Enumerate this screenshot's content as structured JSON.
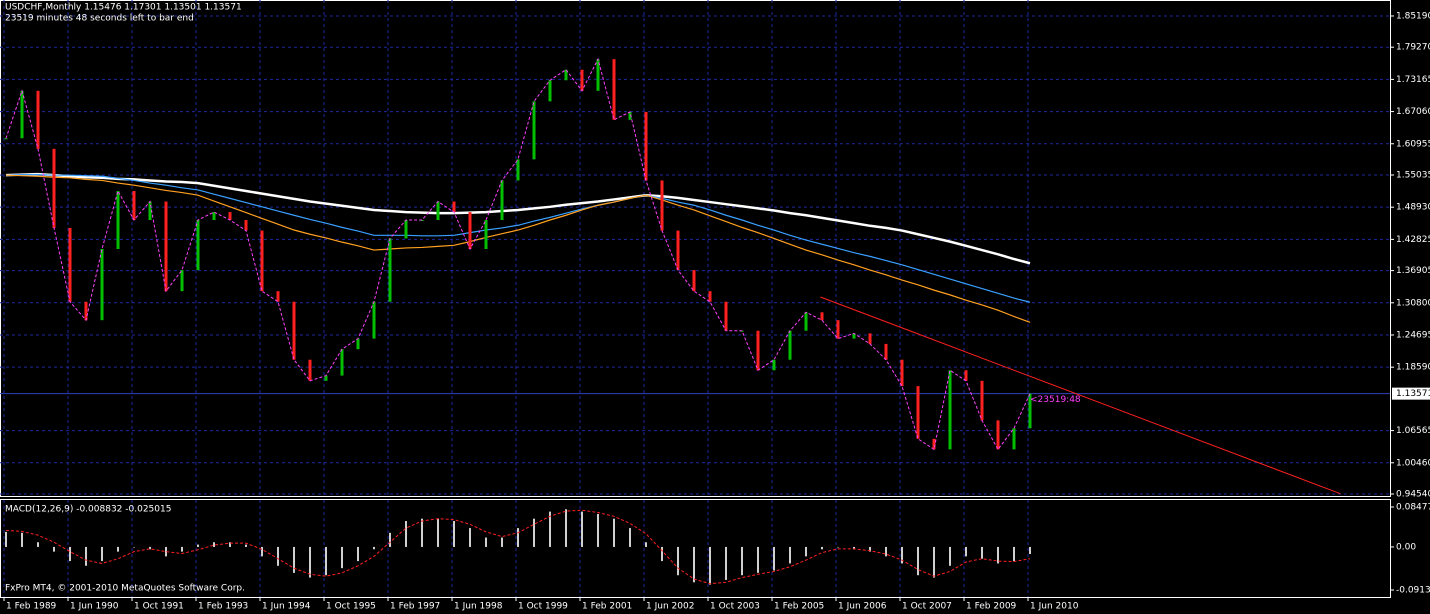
{
  "chart_data": {
    "type": "ohlc-terminal",
    "title": "USDCHF,Monthly  1.15476 1.17301 1.13501 1.13571",
    "subtitle": "23519 minutes 48 seconds left to bar end",
    "footer": "FxPro MT4, © 2001-2010 MetaQuotes Software Corp.",
    "timer_label": "<23519:48",
    "categories": [
      "1 Feb 1989",
      null,
      null,
      null,
      "1 Jun 1990",
      null,
      null,
      null,
      "1 Oct 1991",
      null,
      null,
      null,
      "1 Feb 1993",
      null,
      null,
      null,
      "1 Jun 1994",
      null,
      null,
      null,
      "1 Oct 1995",
      null,
      null,
      null,
      "1 Feb 1997",
      null,
      null,
      null,
      "1 Jun 1998",
      null,
      null,
      null,
      "1 Oct 1999",
      null,
      null,
      null,
      "1 Feb 2001",
      null,
      null,
      null,
      "1 Jun 2002",
      null,
      null,
      null,
      "1 Oct 2003",
      null,
      null,
      null,
      "1 Feb 2005",
      null,
      null,
      null,
      "1 Jun 2006",
      null,
      null,
      null,
      "1 Oct 2007",
      null,
      null,
      null,
      "1 Feb 2009",
      null,
      null,
      null,
      "1 Jun 2010"
    ],
    "up_color": "#00c000",
    "down_color": "#ff2020",
    "close_line_color": "#ff40ff",
    "values": [
      1.62,
      1.71,
      1.6,
      1.45,
      1.31,
      1.275,
      1.41,
      1.52,
      1.465,
      1.5,
      1.33,
      1.37,
      1.465,
      1.48,
      1.465,
      1.445,
      1.33,
      1.31,
      1.2,
      1.16,
      1.17,
      1.22,
      1.24,
      1.31,
      1.43,
      1.465,
      1.465,
      1.5,
      1.48,
      1.41,
      1.465,
      1.54,
      1.58,
      1.69,
      1.73,
      1.75,
      1.71,
      1.77,
      1.655,
      1.67,
      1.54,
      1.445,
      1.37,
      1.33,
      1.31,
      1.255,
      1.255,
      1.18,
      1.2,
      1.255,
      1.29,
      1.275,
      1.24,
      1.25,
      1.23,
      1.2,
      1.15,
      1.05,
      1.03,
      1.18,
      1.16,
      1.085,
      1.03,
      1.07,
      1.13571
    ],
    "series": [
      {
        "name": "MA white",
        "color": "#ffffff",
        "values": [
          1.55,
          1.551,
          1.552,
          1.55,
          1.548,
          1.546,
          1.545,
          1.543,
          1.542,
          1.54,
          1.538,
          1.537,
          1.535,
          1.53,
          1.525,
          1.52,
          1.515,
          1.51,
          1.505,
          1.5,
          1.496,
          1.492,
          1.488,
          1.484,
          1.482,
          1.48,
          1.479,
          1.478,
          1.478,
          1.479,
          1.48,
          1.482,
          1.484,
          1.487,
          1.49,
          1.494,
          1.497,
          1.5,
          1.504,
          1.508,
          1.512,
          1.51,
          1.507,
          1.503,
          1.499,
          1.495,
          1.491,
          1.487,
          1.483,
          1.478,
          1.474,
          1.469,
          1.464,
          1.459,
          1.454,
          1.45,
          1.445,
          1.438,
          1.431,
          1.424,
          1.416,
          1.408,
          1.4,
          1.391,
          1.383
        ]
      },
      {
        "name": "MA blue",
        "color": "#3aa0ff",
        "values": [
          1.55,
          1.551,
          1.551,
          1.55,
          1.55,
          1.549,
          1.548,
          1.544,
          1.54,
          1.535,
          1.531,
          1.526,
          1.522,
          1.514,
          1.506,
          1.498,
          1.49,
          1.482,
          1.474,
          1.466,
          1.459,
          1.451,
          1.444,
          1.436,
          1.436,
          1.436,
          1.435,
          1.435,
          1.436,
          1.441,
          1.446,
          1.45,
          1.455,
          1.463,
          1.47,
          1.478,
          1.486,
          1.493,
          1.499,
          1.506,
          1.512,
          1.506,
          1.499,
          1.493,
          1.484,
          1.474,
          1.465,
          1.455,
          1.446,
          1.436,
          1.427,
          1.419,
          1.411,
          1.403,
          1.396,
          1.388,
          1.38,
          1.371,
          1.362,
          1.353,
          1.344,
          1.335,
          1.326,
          1.317,
          1.309
        ]
      },
      {
        "name": "MA orange",
        "color": "#ffa020",
        "values": [
          1.55,
          1.549,
          1.548,
          1.546,
          1.545,
          1.542,
          1.54,
          1.535,
          1.531,
          1.526,
          1.521,
          1.517,
          1.512,
          1.501,
          1.49,
          1.479,
          1.468,
          1.457,
          1.446,
          1.438,
          1.431,
          1.423,
          1.416,
          1.408,
          1.41,
          1.412,
          1.413,
          1.415,
          1.417,
          1.424,
          1.432,
          1.439,
          1.446,
          1.455,
          1.465,
          1.474,
          1.484,
          1.493,
          1.499,
          1.506,
          1.512,
          1.503,
          1.493,
          1.484,
          1.473,
          1.462,
          1.451,
          1.441,
          1.43,
          1.419,
          1.408,
          1.399,
          1.389,
          1.38,
          1.37,
          1.361,
          1.351,
          1.342,
          1.332,
          1.323,
          1.313,
          1.304,
          1.294,
          1.282,
          1.271
        ]
      }
    ],
    "trendline": {
      "color": "#ff2020",
      "index": [
        50.9,
        83.4
      ],
      "values": [
        1.319,
        0.946
      ]
    },
    "ylim": [
      0.9397,
      1.8822
    ],
    "yticks": [
      {
        "value": 1.8519,
        "label": "1.85190"
      },
      {
        "value": 1.7927,
        "label": "1.79270"
      },
      1.73165,
      {
        "value": 1.6706,
        "label": "1.67060"
      },
      1.60955,
      1.55035,
      {
        "value": 1.4893,
        "label": "1.48930"
      },
      1.42825,
      1.36905,
      {
        "value": 1.308,
        "label": "1.30800"
      },
      1.24695,
      {
        "value": 1.1859,
        "label": "1.18590"
      },
      1.06565,
      {
        "value": 1.0046,
        "label": "1.00460"
      },
      {
        "value": 0.9454,
        "label": "0.94540"
      }
    ],
    "current_price": 1.13571,
    "grid": true,
    "macd": {
      "title": "MACD(12,26,9) -0.008832 -0.025015",
      "histogram_color": "#d0d0d0",
      "signal_color": "#ff2020",
      "values": [
        0.032,
        0.03,
        0.01,
        -0.01,
        -0.03,
        -0.04,
        -0.03,
        -0.01,
        0.0,
        -0.005,
        -0.02,
        -0.01,
        0.005,
        0.01,
        0.01,
        0.005,
        -0.02,
        -0.04,
        -0.055,
        -0.065,
        -0.06,
        -0.045,
        -0.03,
        -0.005,
        0.03,
        0.055,
        0.06,
        0.06,
        0.055,
        0.04,
        0.02,
        0.02,
        0.04,
        0.06,
        0.075,
        0.08,
        0.075,
        0.07,
        0.06,
        0.04,
        0.01,
        -0.03,
        -0.06,
        -0.075,
        -0.08,
        -0.07,
        -0.06,
        -0.055,
        -0.05,
        -0.035,
        -0.02,
        -0.005,
        0.0,
        -0.005,
        -0.01,
        -0.02,
        -0.035,
        -0.06,
        -0.065,
        -0.04,
        -0.02,
        -0.025,
        -0.035,
        -0.03,
        -0.015
      ],
      "signal": [
        0.035,
        0.033,
        0.025,
        0.01,
        -0.01,
        -0.028,
        -0.035,
        -0.025,
        -0.01,
        -0.004,
        -0.01,
        -0.014,
        -0.006,
        0.004,
        0.008,
        0.008,
        -0.005,
        -0.025,
        -0.045,
        -0.058,
        -0.062,
        -0.055,
        -0.04,
        -0.02,
        0.01,
        0.04,
        0.055,
        0.06,
        0.058,
        0.048,
        0.032,
        0.022,
        0.03,
        0.048,
        0.065,
        0.076,
        0.078,
        0.073,
        0.065,
        0.05,
        0.028,
        -0.008,
        -0.045,
        -0.068,
        -0.078,
        -0.075,
        -0.065,
        -0.058,
        -0.052,
        -0.042,
        -0.028,
        -0.012,
        -0.004,
        -0.004,
        -0.008,
        -0.015,
        -0.028,
        -0.048,
        -0.062,
        -0.052,
        -0.032,
        -0.025,
        -0.03,
        -0.031,
        -0.025
      ],
      "ylim": [
        -0.1062,
        0.0996
      ],
      "yticks": [
        0.084779,
        {
          "value": 0,
          "label": "0.00"
        },
        -0.091356
      ]
    }
  }
}
